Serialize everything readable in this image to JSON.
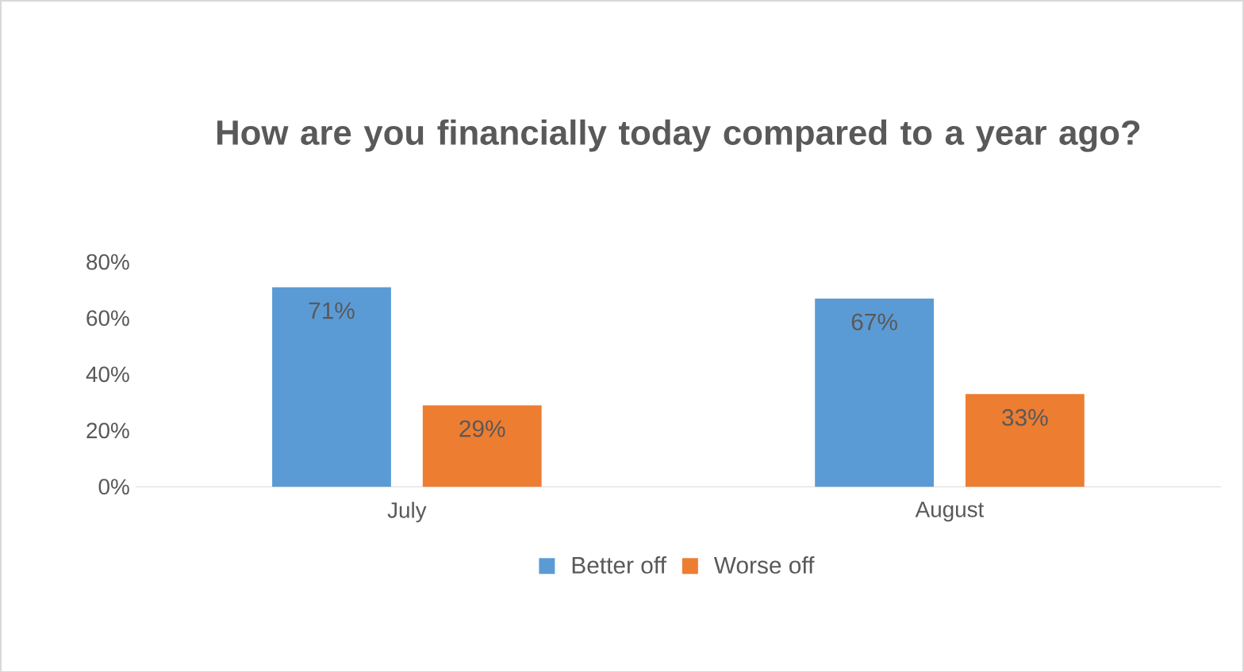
{
  "chart_data": {
    "type": "bar",
    "title": "How are you financially today compared to a year ago?",
    "categories": [
      "July",
      "August"
    ],
    "series": [
      {
        "name": "Better off",
        "color": "#5b9bd5",
        "values": [
          71,
          67
        ],
        "value_labels": [
          "71%",
          "67%"
        ]
      },
      {
        "name": "Worse off",
        "color": "#ed7d31",
        "values": [
          29,
          33
        ],
        "value_labels": [
          "29%",
          "33%"
        ]
      }
    ],
    "ylim": [
      0,
      80
    ],
    "yticks": [
      {
        "value": 0,
        "label": "0%"
      },
      {
        "value": 20,
        "label": "20%"
      },
      {
        "value": 40,
        "label": "40%"
      },
      {
        "value": 60,
        "label": "60%"
      },
      {
        "value": 80,
        "label": "80%"
      }
    ],
    "legend": "bottom"
  }
}
